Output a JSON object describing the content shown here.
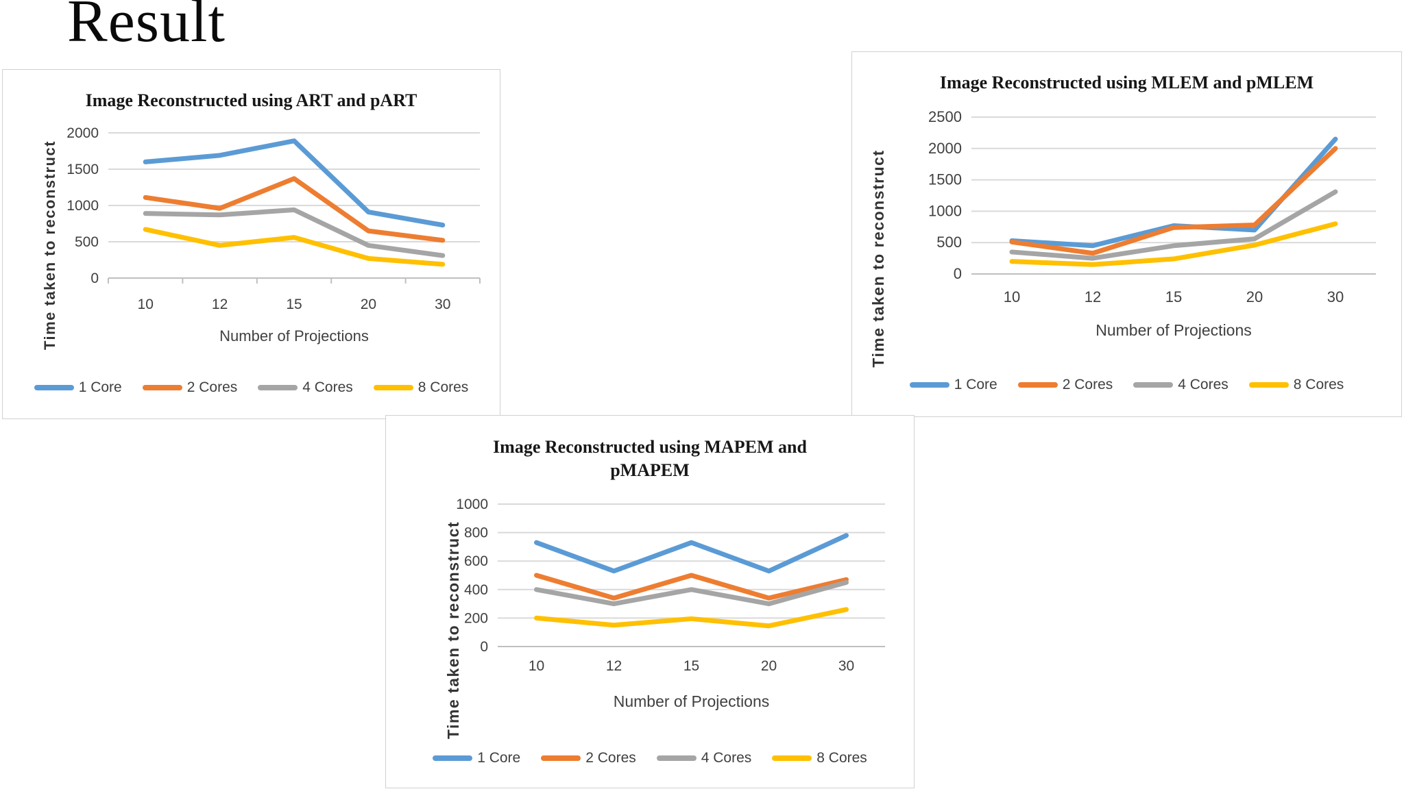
{
  "page": {
    "title": "Result"
  },
  "colors": {
    "series_blue": "#5B9BD5",
    "series_orange": "#ED7D31",
    "series_gray": "#A5A5A5",
    "series_yellow": "#FFC000",
    "gridline": "#D9D9D9",
    "axis_line": "#BFBFBF",
    "tick_text": "#404040",
    "title_text": "#171717"
  },
  "chart_data": [
    {
      "type": "line",
      "title": "Image Reconstructed using ART and pART",
      "xlabel": "Number of Projections",
      "ylabel": "Time taken to reconstruct",
      "categories": [
        "10",
        "12",
        "15",
        "20",
        "30"
      ],
      "series": [
        {
          "name": "1 Core",
          "color": "#5B9BD5",
          "values": [
            1600,
            1690,
            1890,
            910,
            730
          ]
        },
        {
          "name": "2 Cores",
          "color": "#ED7D31",
          "values": [
            1110,
            960,
            1370,
            650,
            520
          ]
        },
        {
          "name": "4 Cores",
          "color": "#A5A5A5",
          "values": [
            890,
            870,
            940,
            450,
            310
          ]
        },
        {
          "name": "8 Cores",
          "color": "#FFC000",
          "values": [
            670,
            450,
            560,
            270,
            190
          ]
        }
      ],
      "ylim": [
        0,
        2000
      ],
      "ytick_step": 500,
      "grid": true,
      "legend_position": "bottom"
    },
    {
      "type": "line",
      "title": "Image Reconstructed using MLEM and pMLEM",
      "xlabel": "Number of Projections",
      "ylabel": "Time taken to reconstruct",
      "categories": [
        "10",
        "12",
        "15",
        "20",
        "30"
      ],
      "series": [
        {
          "name": "1 Core",
          "color": "#5B9BD5",
          "values": [
            530,
            450,
            770,
            700,
            2150
          ]
        },
        {
          "name": "2 Cores",
          "color": "#ED7D31",
          "values": [
            510,
            330,
            740,
            780,
            2000
          ]
        },
        {
          "name": "4 Cores",
          "color": "#A5A5A5",
          "values": [
            350,
            250,
            450,
            560,
            1310
          ]
        },
        {
          "name": "8 Cores",
          "color": "#FFC000",
          "values": [
            200,
            150,
            240,
            460,
            800
          ]
        }
      ],
      "ylim": [
        0,
        2500
      ],
      "ytick_step": 500,
      "grid": true,
      "legend_position": "bottom"
    },
    {
      "type": "line",
      "title": "Image Reconstructed using MAPEM and pMAPEM",
      "xlabel": "Number of Projections",
      "ylabel": "Time taken to reconstruct",
      "categories": [
        "10",
        "12",
        "15",
        "20",
        "30"
      ],
      "series": [
        {
          "name": "1 Core",
          "color": "#5B9BD5",
          "values": [
            730,
            530,
            730,
            530,
            780
          ]
        },
        {
          "name": "2 Cores",
          "color": "#ED7D31",
          "values": [
            500,
            340,
            500,
            340,
            470
          ]
        },
        {
          "name": "4 Cores",
          "color": "#A5A5A5",
          "values": [
            400,
            300,
            400,
            300,
            450
          ]
        },
        {
          "name": "8 Cores",
          "color": "#FFC000",
          "values": [
            200,
            150,
            195,
            145,
            260
          ]
        }
      ],
      "ylim": [
        0,
        1000
      ],
      "ytick_step": 200,
      "grid": true,
      "legend_position": "bottom"
    }
  ]
}
